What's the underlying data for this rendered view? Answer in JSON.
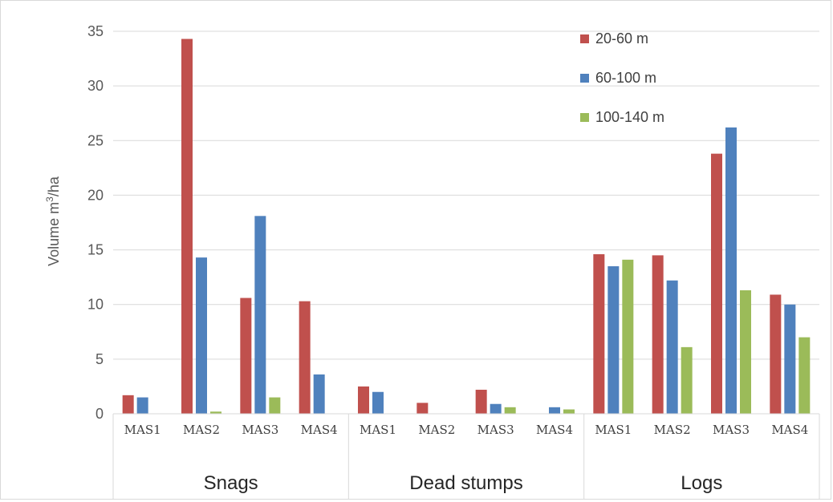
{
  "chart_data": {
    "type": "bar",
    "ylabel": "Volume m³/ha",
    "ylim": [
      0,
      35
    ],
    "yticks": [
      0,
      5,
      10,
      15,
      20,
      25,
      30,
      35
    ],
    "grid": true,
    "legend_position": "top-right",
    "groups": [
      {
        "name": "Snags",
        "categories": [
          "MAS1",
          "MAS2",
          "MAS3",
          "MAS4"
        ]
      },
      {
        "name": "Dead stumps",
        "categories": [
          "MAS1",
          "MAS2",
          "MAS3",
          "MAS4"
        ]
      },
      {
        "name": "Logs",
        "categories": [
          "MAS1",
          "MAS2",
          "MAS3",
          "MAS4"
        ]
      }
    ],
    "series": [
      {
        "name": "20-60 m",
        "color": "#c0504d",
        "values": [
          1.7,
          34.3,
          10.6,
          10.3,
          2.5,
          1.0,
          2.2,
          0,
          14.6,
          14.5,
          23.8,
          10.9
        ]
      },
      {
        "name": "60-100 m",
        "color": "#4f81bd",
        "values": [
          1.5,
          14.3,
          18.1,
          3.6,
          2.0,
          0,
          0.9,
          0.6,
          13.5,
          12.2,
          26.2,
          10.0
        ]
      },
      {
        "name": "100-140 m",
        "color": "#9bbb59",
        "values": [
          0,
          0.2,
          1.5,
          0,
          0,
          0,
          0.6,
          0.4,
          14.1,
          6.1,
          11.3,
          7.0
        ]
      }
    ]
  }
}
